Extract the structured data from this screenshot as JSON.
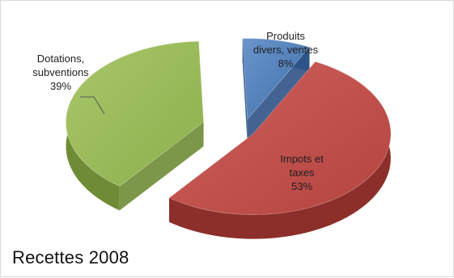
{
  "chart_data": {
    "type": "pie",
    "style": "3d-exploded",
    "title": "Recettes 2008",
    "slices": [
      {
        "name": "Produits divers, ventes",
        "label_lines": [
          "Produits",
          "divers, ventes"
        ],
        "percent_label": "8%",
        "value": 8,
        "color": "#4f81bd"
      },
      {
        "name": "Impots et taxes",
        "label_lines": [
          "Impots et",
          "taxes"
        ],
        "percent_label": "53%",
        "value": 53,
        "color": "#c0504d"
      },
      {
        "name": "Dotations, subventions",
        "label_lines": [
          "Dotations,",
          "subventions"
        ],
        "percent_label": "39%",
        "value": 39,
        "color": "#9bbb59"
      }
    ],
    "legend": "none"
  }
}
